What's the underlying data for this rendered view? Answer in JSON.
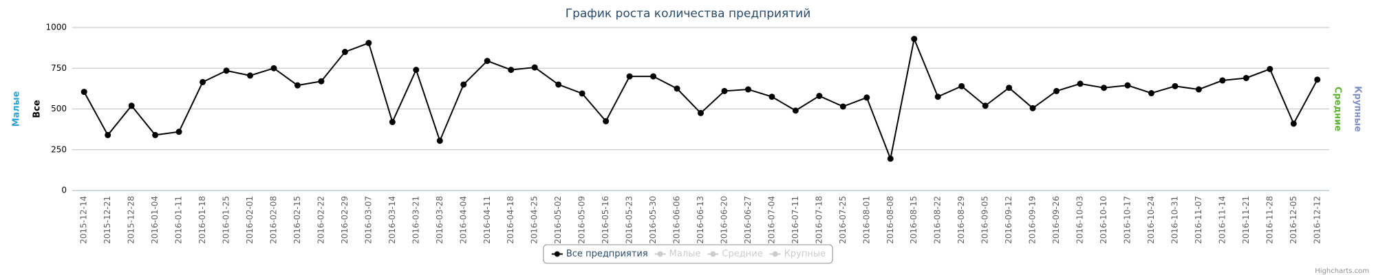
{
  "chart_data": {
    "type": "line",
    "title": "График роста количества предприятий",
    "categories": [
      "2015-12-14",
      "2015-12-21",
      "2015-12-28",
      "2016-01-04",
      "2016-01-11",
      "2016-01-18",
      "2016-01-25",
      "2016-02-01",
      "2016-02-08",
      "2016-02-15",
      "2016-02-22",
      "2016-02-29",
      "2016-03-07",
      "2016-03-14",
      "2016-03-21",
      "2016-03-28",
      "2016-04-04",
      "2016-04-11",
      "2016-04-18",
      "2016-04-25",
      "2016-05-02",
      "2016-05-09",
      "2016-05-16",
      "2016-05-23",
      "2016-05-30",
      "2016-06-06",
      "2016-06-13",
      "2016-06-20",
      "2016-06-27",
      "2016-07-04",
      "2016-07-11",
      "2016-07-18",
      "2016-07-25",
      "2016-08-01",
      "2016-08-08",
      "2016-08-15",
      "2016-08-22",
      "2016-08-29",
      "2016-09-05",
      "2016-09-12",
      "2016-09-19",
      "2016-09-26",
      "2016-10-03",
      "2016-10-10",
      "2016-10-17",
      "2016-10-24",
      "2016-10-31",
      "2016-11-07",
      "2016-11-14",
      "2016-11-21",
      "2016-11-28",
      "2016-12-05",
      "2016-12-12"
    ],
    "series": [
      {
        "name": "Все предприятия",
        "color": "#000000",
        "values": [
          605,
          340,
          520,
          340,
          360,
          665,
          735,
          705,
          750,
          645,
          670,
          850,
          905,
          420,
          740,
          305,
          650,
          795,
          740,
          755,
          650,
          595,
          425,
          700,
          700,
          625,
          475,
          610,
          620,
          575,
          490,
          580,
          515,
          570,
          195,
          930,
          575,
          640,
          520,
          630,
          505,
          610,
          655,
          630,
          645,
          597,
          640,
          620,
          675,
          690,
          745,
          410,
          680
        ]
      }
    ],
    "hidden_legend_items": [
      "Малые",
      "Средние",
      "Крупные"
    ],
    "y_axis_titles": [
      {
        "text": "Малые",
        "color": "#2ba3d6",
        "side": "left"
      },
      {
        "text": "Все",
        "color": "#000000",
        "side": "left"
      },
      {
        "text": "Средние",
        "color": "#5cb82d",
        "side": "right"
      },
      {
        "text": "Крупные",
        "color": "#7f8fc7",
        "side": "right"
      }
    ],
    "ylim": [
      0,
      1000
    ],
    "yticks": [
      0,
      250,
      500,
      750,
      1000
    ],
    "grid": true,
    "credits": "Highcharts.com"
  }
}
